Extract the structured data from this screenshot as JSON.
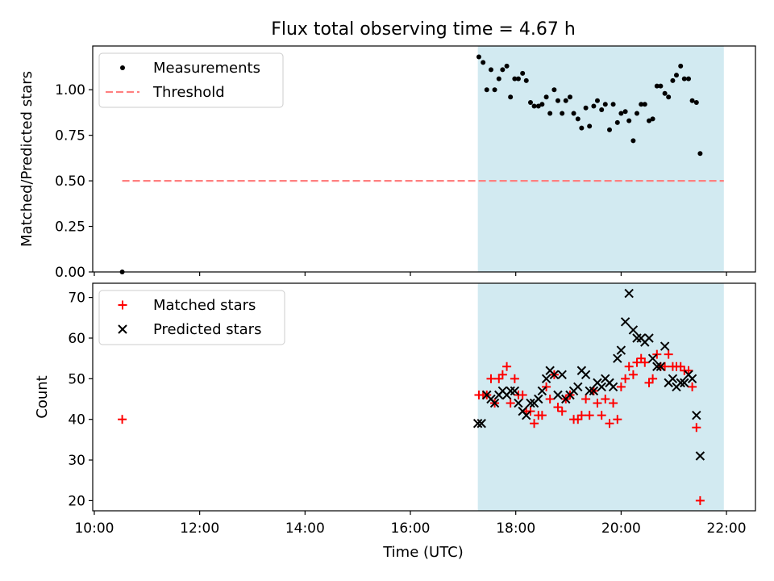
{
  "figure": {
    "title": "Flux total observing time = 4.67 h",
    "xlabel": "Time (UTC)",
    "x_tick_labels": [
      "10:00",
      "12:00",
      "14:00",
      "16:00",
      "18:00",
      "20:00",
      "22:00"
    ]
  },
  "chart_data": [
    {
      "type": "scatter",
      "panel": "top",
      "ylabel": "Matched/Predicted stars",
      "xlim_hours": [
        9.97,
        22.55
      ],
      "ylim": [
        0,
        1.24
      ],
      "y_ticks": [
        0.0,
        0.25,
        0.5,
        0.75,
        1.0
      ],
      "y_tick_labels": [
        "0.00",
        "0.25",
        "0.50",
        "0.75",
        "1.00"
      ],
      "observing_window_hours": [
        17.28,
        21.95
      ],
      "window_color": "#add8e6",
      "legend": {
        "placement": "top-left",
        "entries": [
          "Measurements",
          "Threshold"
        ]
      },
      "threshold": {
        "name": "Threshold",
        "y": 0.5,
        "x_range_hours": [
          10.53,
          21.95
        ],
        "color": "#ff8080",
        "style": "dashed"
      },
      "series": [
        {
          "name": "Measurements",
          "marker": "dot",
          "color": "#000000",
          "points": [
            [
              10.53,
              0.0
            ],
            [
              17.3,
              1.18
            ],
            [
              17.38,
              1.15
            ],
            [
              17.45,
              1.0
            ],
            [
              17.53,
              1.11
            ],
            [
              17.6,
              1.0
            ],
            [
              17.68,
              1.06
            ],
            [
              17.75,
              1.11
            ],
            [
              17.83,
              1.13
            ],
            [
              17.9,
              0.96
            ],
            [
              17.98,
              1.06
            ],
            [
              18.05,
              1.06
            ],
            [
              18.13,
              1.09
            ],
            [
              18.2,
              1.05
            ],
            [
              18.28,
              0.93
            ],
            [
              18.35,
              0.91
            ],
            [
              18.43,
              0.91
            ],
            [
              18.5,
              0.92
            ],
            [
              18.58,
              0.96
            ],
            [
              18.65,
              0.87
            ],
            [
              18.73,
              1.0
            ],
            [
              18.8,
              0.94
            ],
            [
              18.88,
              0.87
            ],
            [
              18.95,
              0.94
            ],
            [
              19.03,
              0.96
            ],
            [
              19.1,
              0.87
            ],
            [
              19.18,
              0.84
            ],
            [
              19.25,
              0.79
            ],
            [
              19.33,
              0.9
            ],
            [
              19.4,
              0.8
            ],
            [
              19.48,
              0.91
            ],
            [
              19.55,
              0.94
            ],
            [
              19.63,
              0.89
            ],
            [
              19.7,
              0.92
            ],
            [
              19.78,
              0.78
            ],
            [
              19.85,
              0.92
            ],
            [
              19.93,
              0.82
            ],
            [
              20.0,
              0.87
            ],
            [
              20.08,
              0.88
            ],
            [
              20.15,
              0.83
            ],
            [
              20.23,
              0.72
            ],
            [
              20.3,
              0.87
            ],
            [
              20.38,
              0.92
            ],
            [
              20.45,
              0.92
            ],
            [
              20.53,
              0.83
            ],
            [
              20.6,
              0.84
            ],
            [
              20.68,
              1.02
            ],
            [
              20.75,
              1.02
            ],
            [
              20.83,
              0.98
            ],
            [
              20.9,
              0.96
            ],
            [
              20.98,
              1.05
            ],
            [
              21.05,
              1.08
            ],
            [
              21.13,
              1.13
            ],
            [
              21.2,
              1.06
            ],
            [
              21.28,
              1.06
            ],
            [
              21.35,
              0.94
            ],
            [
              21.43,
              0.93
            ],
            [
              21.5,
              0.65
            ]
          ]
        }
      ]
    },
    {
      "type": "scatter",
      "panel": "bottom",
      "ylabel": "Count",
      "xlim_hours": [
        9.97,
        22.55
      ],
      "ylim": [
        17.5,
        73.5
      ],
      "y_ticks": [
        20,
        30,
        40,
        50,
        60,
        70
      ],
      "y_tick_labels": [
        "20",
        "30",
        "40",
        "50",
        "60",
        "70"
      ],
      "observing_window_hours": [
        17.28,
        21.95
      ],
      "window_color": "#add8e6",
      "legend": {
        "placement": "top-left",
        "entries": [
          "Matched stars",
          "Predicted stars"
        ]
      },
      "series": [
        {
          "name": "Matched stars",
          "marker": "plus",
          "color": "#ff0000",
          "points": [
            [
              10.53,
              40
            ],
            [
              17.3,
              46
            ],
            [
              17.38,
              46
            ],
            [
              17.45,
              46
            ],
            [
              17.53,
              50
            ],
            [
              17.6,
              44
            ],
            [
              17.68,
              50
            ],
            [
              17.75,
              51
            ],
            [
              17.83,
              53
            ],
            [
              17.9,
              44
            ],
            [
              17.98,
              50
            ],
            [
              18.05,
              46
            ],
            [
              18.13,
              46
            ],
            [
              18.2,
              42
            ],
            [
              18.28,
              42
            ],
            [
              18.35,
              39
            ],
            [
              18.43,
              41
            ],
            [
              18.5,
              41
            ],
            [
              18.58,
              48
            ],
            [
              18.65,
              45
            ],
            [
              18.73,
              51
            ],
            [
              18.8,
              43
            ],
            [
              18.88,
              42
            ],
            [
              18.95,
              45
            ],
            [
              19.03,
              46
            ],
            [
              19.1,
              40
            ],
            [
              19.18,
              40
            ],
            [
              19.25,
              41
            ],
            [
              19.33,
              45
            ],
            [
              19.4,
              41
            ],
            [
              19.48,
              47
            ],
            [
              19.55,
              44
            ],
            [
              19.63,
              41
            ],
            [
              19.7,
              45
            ],
            [
              19.78,
              39
            ],
            [
              19.85,
              44
            ],
            [
              19.93,
              40
            ],
            [
              20.0,
              48
            ],
            [
              20.08,
              50
            ],
            [
              20.15,
              53
            ],
            [
              20.23,
              51
            ],
            [
              20.3,
              54
            ],
            [
              20.38,
              55
            ],
            [
              20.45,
              54
            ],
            [
              20.53,
              49
            ],
            [
              20.6,
              50
            ],
            [
              20.68,
              56
            ],
            [
              20.75,
              53
            ],
            [
              20.83,
              53
            ],
            [
              20.9,
              56
            ],
            [
              20.98,
              53
            ],
            [
              21.05,
              53
            ],
            [
              21.13,
              53
            ],
            [
              21.2,
              52
            ],
            [
              21.28,
              52
            ],
            [
              21.35,
              48
            ],
            [
              21.43,
              38
            ],
            [
              21.5,
              20
            ]
          ]
        },
        {
          "name": "Predicted stars",
          "marker": "x",
          "color": "#000000",
          "points": [
            [
              17.28,
              39
            ],
            [
              17.35,
              39
            ],
            [
              17.45,
              46
            ],
            [
              17.53,
              45
            ],
            [
              17.6,
              44
            ],
            [
              17.68,
              46
            ],
            [
              17.75,
              47
            ],
            [
              17.83,
              46
            ],
            [
              17.9,
              47
            ],
            [
              17.98,
              47
            ],
            [
              18.05,
              44
            ],
            [
              18.13,
              42
            ],
            [
              18.2,
              41
            ],
            [
              18.28,
              44
            ],
            [
              18.35,
              44
            ],
            [
              18.43,
              45
            ],
            [
              18.5,
              47
            ],
            [
              18.58,
              50
            ],
            [
              18.65,
              52
            ],
            [
              18.73,
              51
            ],
            [
              18.8,
              46
            ],
            [
              18.88,
              51
            ],
            [
              18.95,
              45
            ],
            [
              19.03,
              46
            ],
            [
              19.1,
              47
            ],
            [
              19.18,
              48
            ],
            [
              19.25,
              52
            ],
            [
              19.33,
              51
            ],
            [
              19.4,
              47
            ],
            [
              19.48,
              47
            ],
            [
              19.55,
              49
            ],
            [
              19.63,
              48
            ],
            [
              19.7,
              50
            ],
            [
              19.78,
              49
            ],
            [
              19.85,
              48
            ],
            [
              19.93,
              55
            ],
            [
              20.0,
              57
            ],
            [
              20.08,
              64
            ],
            [
              20.15,
              71
            ],
            [
              20.23,
              62
            ],
            [
              20.3,
              60
            ],
            [
              20.38,
              60
            ],
            [
              20.45,
              59
            ],
            [
              20.53,
              60
            ],
            [
              20.6,
              55
            ],
            [
              20.68,
              53
            ],
            [
              20.75,
              53
            ],
            [
              20.83,
              58
            ],
            [
              20.9,
              49
            ],
            [
              20.98,
              50
            ],
            [
              21.05,
              48
            ],
            [
              21.13,
              49
            ],
            [
              21.2,
              49
            ],
            [
              21.28,
              51
            ],
            [
              21.35,
              50
            ],
            [
              21.43,
              41
            ],
            [
              21.5,
              31
            ]
          ]
        }
      ]
    }
  ]
}
